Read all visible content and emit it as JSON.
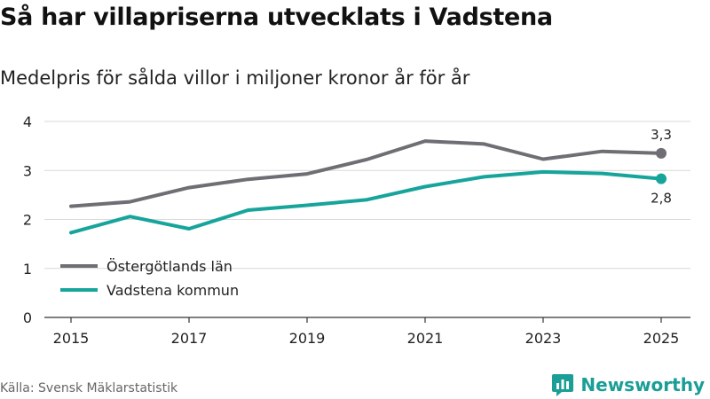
{
  "title": "Så har villapriserna utvecklats i Vadstena",
  "subtitle": "Medelpris för sålda villor i miljoner kronor år för år",
  "source": "Källa: Svensk Mäklarstatistik",
  "brand": {
    "name": "Newsworthy"
  },
  "colors": {
    "county": "#6e6e74",
    "municipality": "#16a49b",
    "grid": "#d9d9d9",
    "axis": "#333333"
  },
  "chart_data": {
    "type": "line",
    "x": [
      2015,
      2016,
      2017,
      2018,
      2019,
      2020,
      2021,
      2022,
      2023,
      2024,
      2025
    ],
    "x_ticks": [
      "2015",
      "2017",
      "2019",
      "2021",
      "2023",
      "2025"
    ],
    "y_ticks": [
      "0",
      "1",
      "2",
      "3",
      "4"
    ],
    "ylim": [
      0,
      4
    ],
    "xlabel": "",
    "ylabel": "",
    "grid": true,
    "legend_position": "bottom-left",
    "series": [
      {
        "name": "Östergötlands län",
        "color": "#6e6e74",
        "values": [
          2.27,
          2.36,
          2.65,
          2.82,
          2.93,
          3.22,
          3.6,
          3.54,
          3.23,
          3.39,
          3.35
        ],
        "end_label": "3,3"
      },
      {
        "name": "Vadstena kommun",
        "color": "#16a49b",
        "values": [
          1.73,
          2.06,
          1.81,
          2.19,
          2.29,
          2.4,
          2.67,
          2.87,
          2.97,
          2.94,
          2.83
        ],
        "end_label": "2,8"
      }
    ]
  }
}
